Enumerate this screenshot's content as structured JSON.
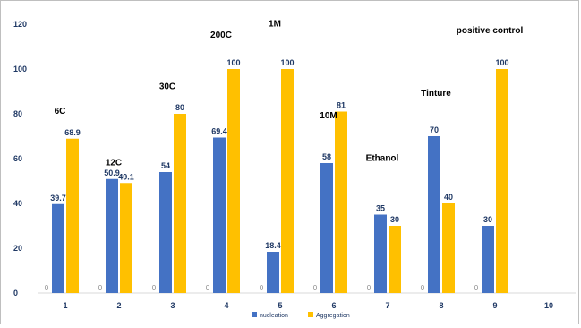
{
  "chart_data": {
    "type": "bar",
    "categories": [
      "1",
      "2",
      "3",
      "4",
      "5",
      "6",
      "7",
      "8",
      "9",
      "10"
    ],
    "series": [
      {
        "name": "nucleation",
        "color": "#4472c4",
        "values": [
          39.7,
          50.9,
          54,
          69.4,
          18.4,
          58,
          35,
          70,
          30,
          null
        ],
        "labels": [
          "39.7",
          "50.9",
          "54",
          "69.4",
          "18.4",
          "58",
          "35",
          "70",
          "30",
          ""
        ]
      },
      {
        "name": "Aggregation",
        "color": "#ffc000",
        "values": [
          68.9,
          49.1,
          80,
          100,
          100,
          81,
          30,
          40,
          100,
          null
        ],
        "labels": [
          "68.9",
          "49.1",
          "80",
          "100",
          "100",
          "81",
          "30",
          "40",
          "100",
          ""
        ]
      }
    ],
    "zero_labels": [
      "0",
      "0",
      "0",
      "0",
      "0",
      "0",
      "0",
      "0",
      "0",
      ""
    ],
    "ylim": [
      0,
      120
    ],
    "yticks": [
      "0",
      "20",
      "40",
      "60",
      "80",
      "100",
      "120"
    ],
    "ytick_values": [
      0,
      20,
      40,
      60,
      80,
      100,
      120
    ],
    "title": "",
    "xlabel": "",
    "ylabel": "",
    "grid": false,
    "legend_position": "bottom",
    "annotations": [
      {
        "text": "6C",
        "category": 0,
        "y": 80
      },
      {
        "text": "12C",
        "category": 1,
        "y": 57
      },
      {
        "text": "30C",
        "category": 2,
        "y": 91
      },
      {
        "text": "200C",
        "category": 3,
        "y": 114
      },
      {
        "text": "1M",
        "category": 4,
        "y": 119
      },
      {
        "text": "10M",
        "category": 5,
        "y": 78
      },
      {
        "text": "Ethanol",
        "category": 6,
        "y": 59
      },
      {
        "text": "Tinture",
        "category": 7,
        "y": 88
      },
      {
        "text": "positive control",
        "category": 8,
        "y": 116
      }
    ]
  }
}
